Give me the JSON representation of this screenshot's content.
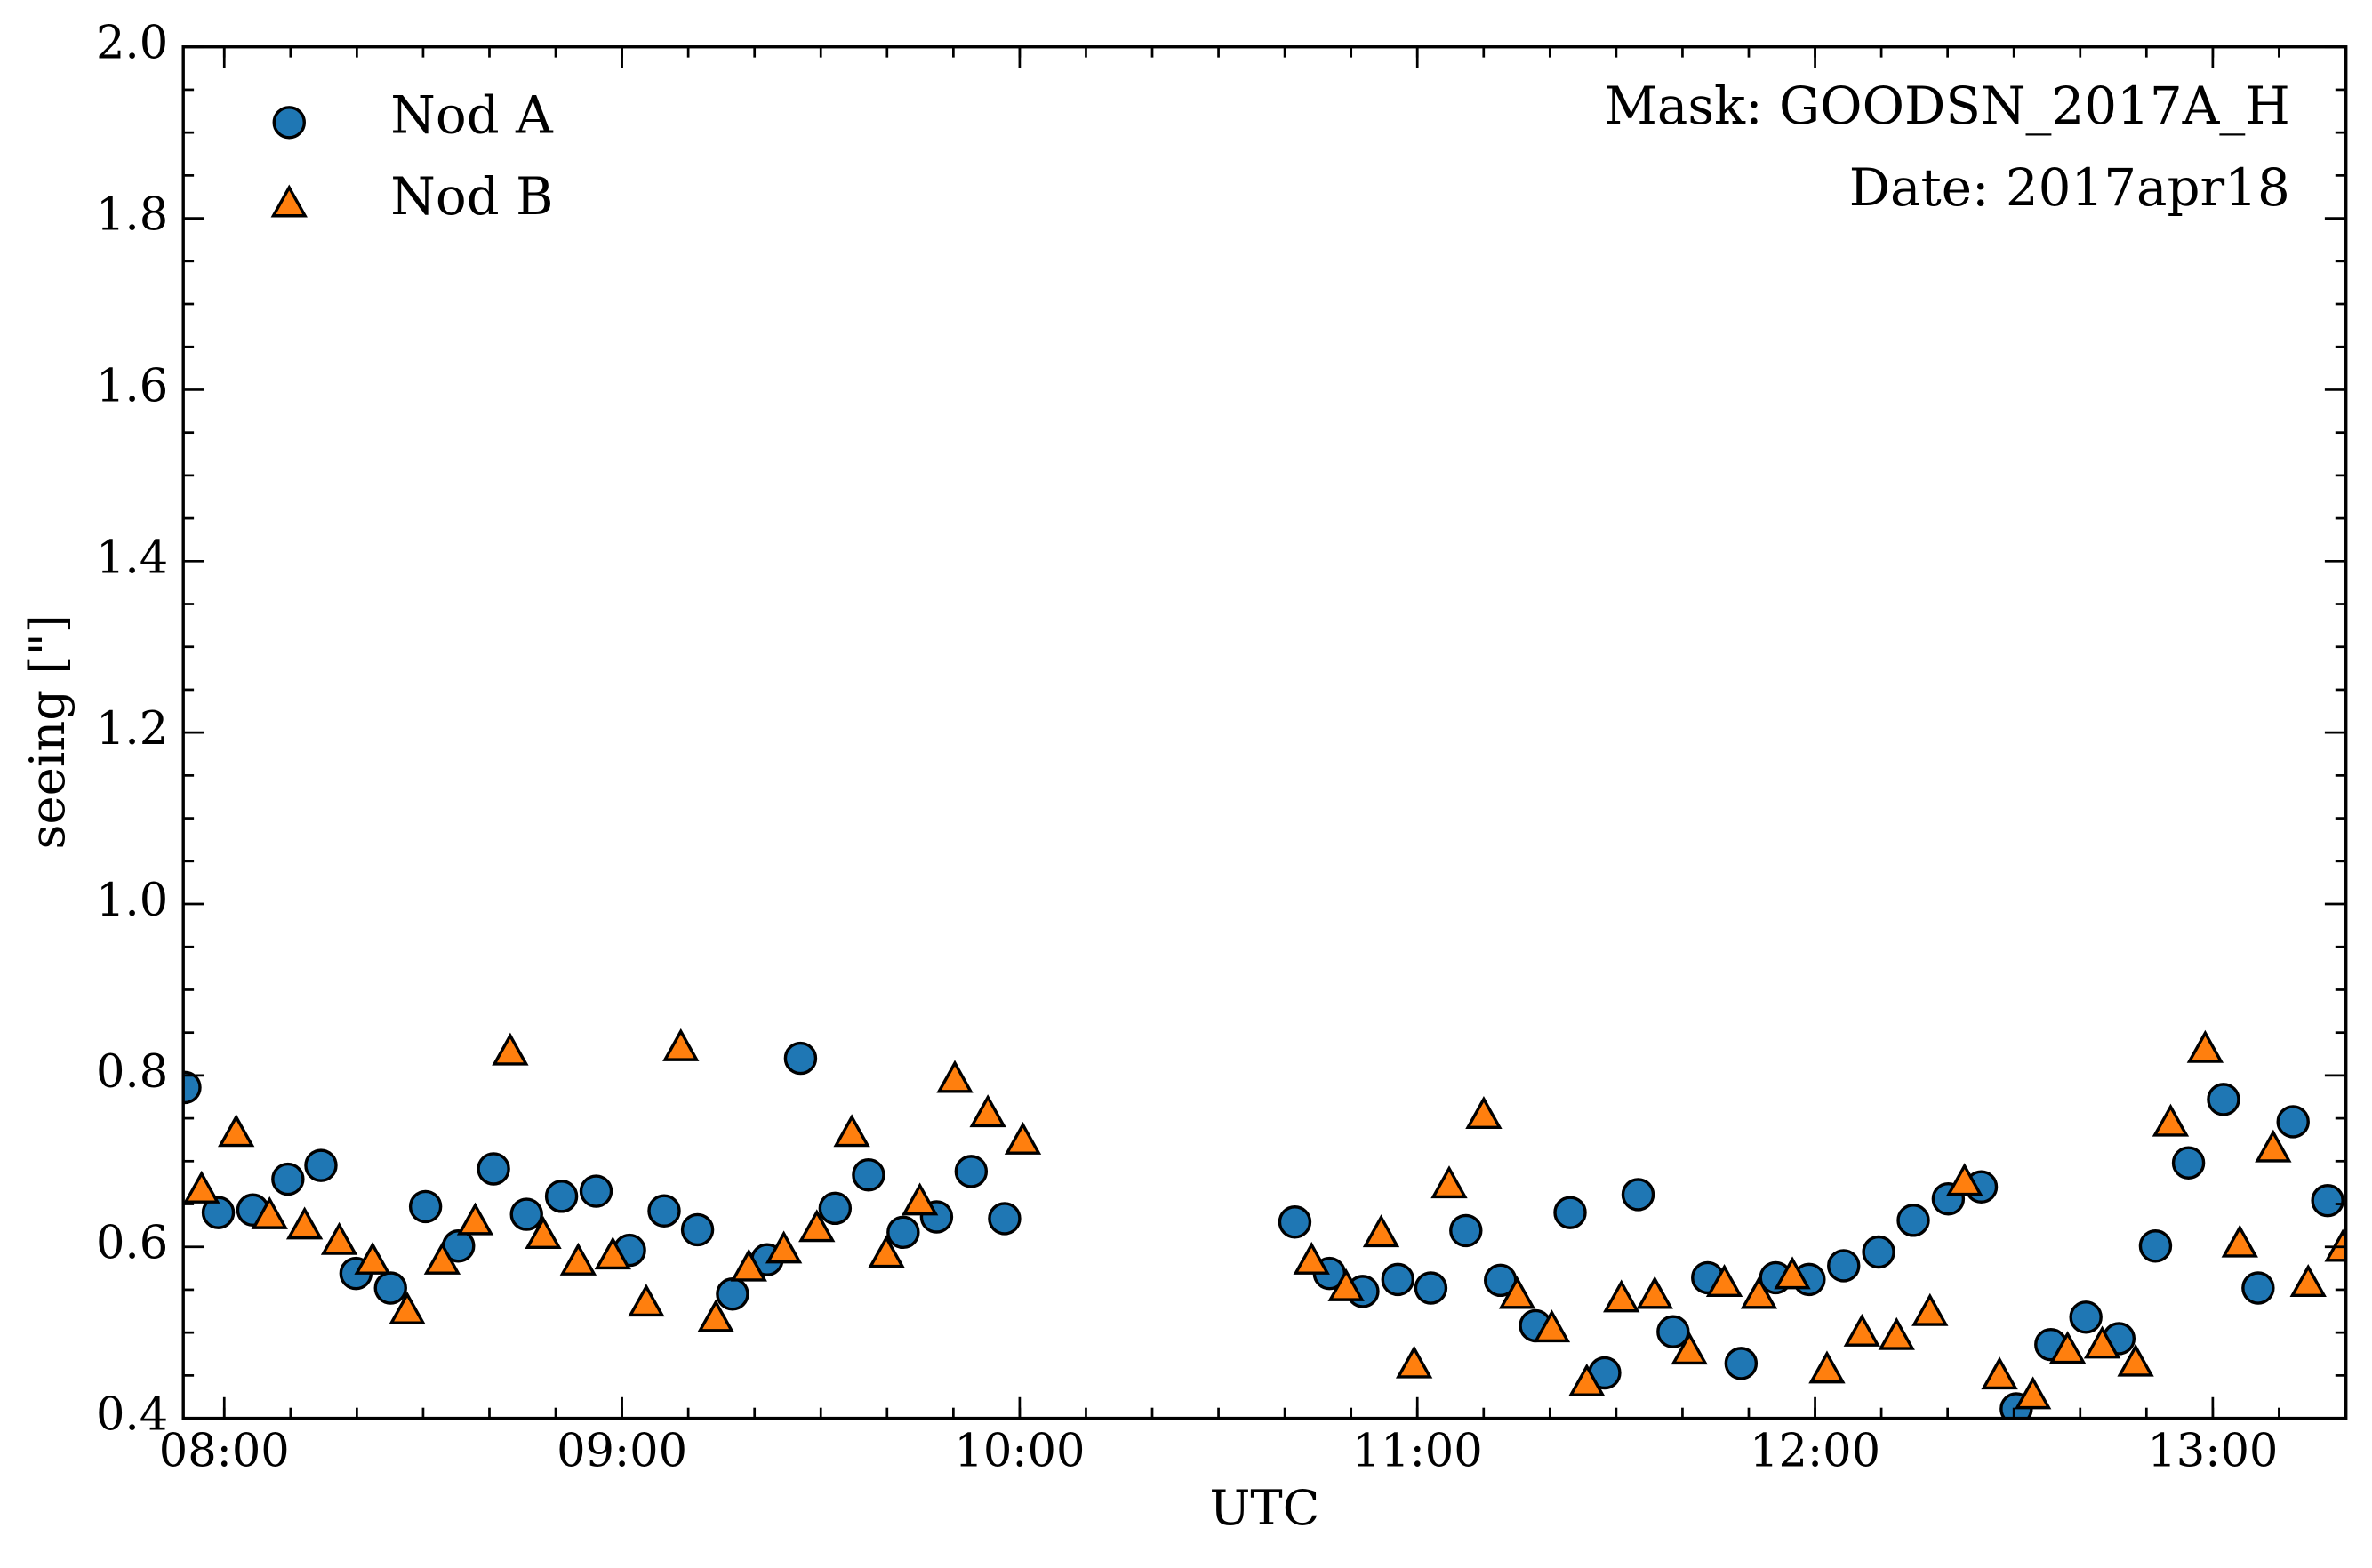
{
  "chart_data": {
    "type": "scatter",
    "xlabel": "UTC",
    "ylabel": "seeing [\"]",
    "annotations": [
      "Mask: GOODSN_2017A_H",
      "Date: 2017apr18"
    ],
    "legend": "upper left",
    "xlim": [
      7.897,
      13.335
    ],
    "ylim": [
      0.4,
      2.0
    ],
    "xticks": [
      {
        "value": 8,
        "label": "08:00"
      },
      {
        "value": 9,
        "label": "09:00"
      },
      {
        "value": 10,
        "label": "10:00"
      },
      {
        "value": 11,
        "label": "11:00"
      },
      {
        "value": 12,
        "label": "12:00"
      },
      {
        "value": 13,
        "label": "13:00"
      }
    ],
    "yticks": [
      0.4,
      0.6,
      0.8,
      {
        "value": 1.0,
        "label": "1.0"
      },
      1.2,
      1.4,
      1.6,
      1.8,
      {
        "value": 2.0,
        "label": "2.0"
      }
    ],
    "series": [
      {
        "name": "Nod A",
        "color": "#1f77b4",
        "marker": "circle",
        "x": [
          7.901,
          7.985,
          8.072,
          8.16,
          8.243,
          8.331,
          8.418,
          8.506,
          8.589,
          8.677,
          8.76,
          8.848,
          8.935,
          9.019,
          9.106,
          9.19,
          9.278,
          9.365,
          9.449,
          9.536,
          9.62,
          9.707,
          9.791,
          9.878,
          9.962,
          10.692,
          10.779,
          10.863,
          10.951,
          11.034,
          11.122,
          11.209,
          11.297,
          11.384,
          11.471,
          11.555,
          11.643,
          11.73,
          11.814,
          11.901,
          11.985,
          12.072,
          12.16,
          12.247,
          12.335,
          12.418,
          12.506,
          12.593,
          12.681,
          12.764,
          12.856,
          12.939,
          13.027,
          13.114,
          13.202,
          13.289
        ],
        "values": [
          0.786,
          0.64,
          0.643,
          0.679,
          0.695,
          0.569,
          0.552,
          0.647,
          0.601,
          0.691,
          0.638,
          0.659,
          0.665,
          0.596,
          0.642,
          0.62,
          0.545,
          0.585,
          0.82,
          0.645,
          0.684,
          0.617,
          0.635,
          0.688,
          0.633,
          0.629,
          0.569,
          0.548,
          0.562,
          0.552,
          0.619,
          0.561,
          0.508,
          0.64,
          0.453,
          0.661,
          0.501,
          0.564,
          0.464,
          0.564,
          0.562,
          0.578,
          0.594,
          0.631,
          0.656,
          0.67,
          0.411,
          0.486,
          0.518,
          0.493,
          0.601,
          0.698,
          0.772,
          0.552,
          0.746,
          0.654
        ]
      },
      {
        "name": "Nod B",
        "color": "#ff7f0e",
        "marker": "triangle",
        "x": [
          7.943,
          8.03,
          8.114,
          8.202,
          8.289,
          8.373,
          8.46,
          8.548,
          8.631,
          8.719,
          8.802,
          8.89,
          8.977,
          9.061,
          9.148,
          9.236,
          9.319,
          9.407,
          9.49,
          9.578,
          9.665,
          9.749,
          9.837,
          9.92,
          10.008,
          10.734,
          10.821,
          10.909,
          10.992,
          11.08,
          11.167,
          11.251,
          11.338,
          11.426,
          11.513,
          11.597,
          11.684,
          11.772,
          11.859,
          11.943,
          12.03,
          12.118,
          12.205,
          12.289,
          12.376,
          12.464,
          12.548,
          12.635,
          12.722,
          12.806,
          12.894,
          12.981,
          13.068,
          13.152,
          13.24,
          13.327
        ],
        "values": [
          0.666,
          0.732,
          0.636,
          0.624,
          0.606,
          0.583,
          0.525,
          0.583,
          0.629,
          0.827,
          0.613,
          0.582,
          0.589,
          0.534,
          0.832,
          0.516,
          0.575,
          0.596,
          0.621,
          0.732,
          0.591,
          0.652,
          0.795,
          0.755,
          0.723,
          0.583,
          0.552,
          0.615,
          0.462,
          0.672,
          0.753,
          0.543,
          0.504,
          0.441,
          0.539,
          0.543,
          0.478,
          0.557,
          0.543,
          0.566,
          0.456,
          0.499,
          0.495,
          0.523,
          0.675,
          0.449,
          0.426,
          0.479,
          0.485,
          0.464,
          0.744,
          0.83,
          0.603,
          0.714,
          0.557,
          0.598
        ]
      }
    ]
  }
}
